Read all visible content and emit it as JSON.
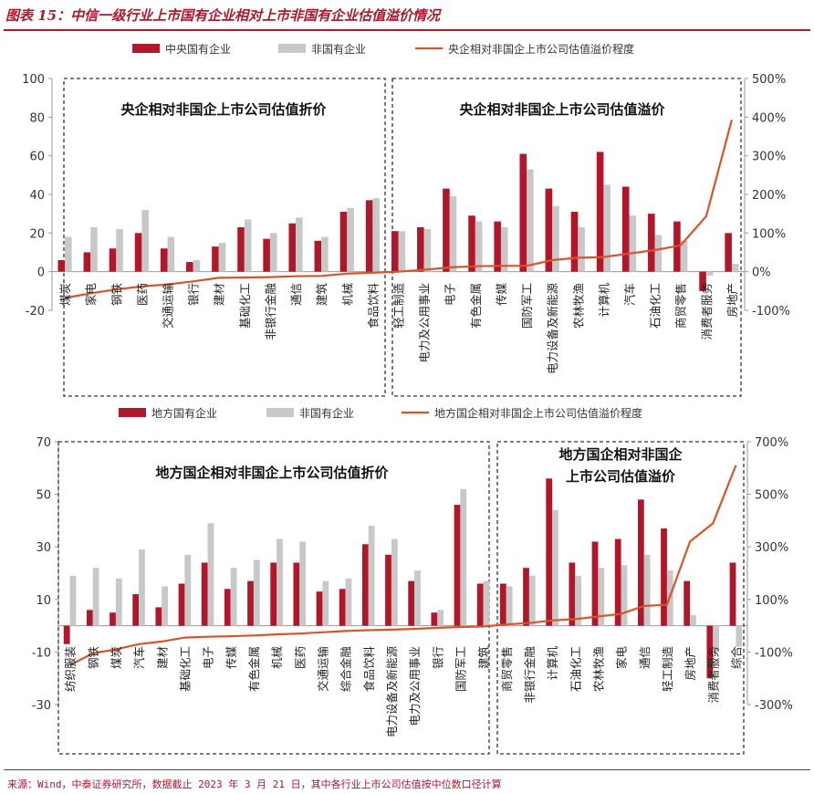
{
  "figure": {
    "title": "图表 15：中信一级行业上市国有企业相对上市非国有企业估值溢价情况",
    "source": "来源：Wind，中泰证券研究所，数据截止 2023 年 3 月 21 日，其中各行业上市公司估值按中位数口径计算"
  },
  "colors": {
    "soe": "#b0172b",
    "non_soe": "#c8c8c8",
    "line": "#d9532b",
    "box": "#333333"
  },
  "chart_data": [
    {
      "type": "bar",
      "legend": [
        "中央国有企业",
        "非国有企业",
        "央企相对非国企上市公司估值溢价程度"
      ],
      "boxes": [
        "央企相对非国企上市公司估值折价",
        "央企相对非国企上市公司估值溢价"
      ],
      "ylim_left": [
        -20,
        100
      ],
      "yticks_left": [
        "100",
        "80",
        "60",
        "40",
        "20",
        "0",
        "-20"
      ],
      "ylim_right": [
        -100,
        500
      ],
      "yticks_right": [
        "500%",
        "400%",
        "300%",
        "200%",
        "100%",
        "0%",
        "-100%"
      ],
      "categories": [
        "煤炭",
        "家电",
        "钢铁",
        "医药",
        "交通运输",
        "银行",
        "建材",
        "基础化工",
        "非银行金融",
        "通信",
        "建筑",
        "机械",
        "食品饮料",
        "轻工制造",
        "电力及公用事业",
        "电子",
        "有色金属",
        "传媒",
        "国防军工",
        "电力设备及新能源",
        "农林牧渔",
        "计算机",
        "汽车",
        "石油化工",
        "商贸零售",
        "消费者服务",
        "房地产"
      ],
      "series": [
        {
          "name": "中央国有企业",
          "values": [
            6,
            10,
            12,
            20,
            12,
            5,
            13,
            23,
            17,
            25,
            16,
            31,
            37,
            21,
            23,
            43,
            29,
            26,
            61,
            43,
            31,
            62,
            44,
            30,
            26,
            -10,
            20
          ]
        },
        {
          "name": "非国有企业",
          "values": [
            18,
            23,
            22,
            32,
            18,
            6,
            15,
            27,
            20,
            28,
            18,
            33,
            38,
            21,
            22,
            39,
            26,
            23,
            53,
            34,
            23,
            45,
            29,
            19,
            16,
            -2,
            4
          ]
        },
        {
          "name": "央企相对非国企上市公司估值溢价程度",
          "values": [
            -68,
            -56,
            -46,
            -38,
            -33,
            -25,
            -16,
            -15,
            -14,
            -12,
            -11,
            -5,
            -3,
            0,
            5,
            11,
            14,
            15,
            15,
            30,
            36,
            38,
            47,
            56,
            68,
            143,
            393
          ]
        }
      ]
    },
    {
      "type": "bar",
      "legend": [
        "地方国有企业",
        "非国有企业",
        "地方国企相对非国企上市公司估值溢价程度"
      ],
      "boxes": [
        "地方国企相对非国企上市公司估值折价",
        "地方国企相对非国企上市公司估值溢价"
      ],
      "box2_lines": [
        "地方国企相对非国企",
        "上市公司估值溢价"
      ],
      "ylim_left": [
        -30,
        70
      ],
      "yticks_left": [
        "70",
        "50",
        "30",
        "10",
        "-10",
        "-30"
      ],
      "ylim_right": [
        -300,
        700
      ],
      "yticks_right": [
        "700%",
        "500%",
        "300%",
        "100%",
        "-100%",
        "-300%"
      ],
      "categories": [
        "纺织服装",
        "钢铁",
        "煤炭",
        "汽车",
        "建材",
        "基础化工",
        "电子",
        "传媒",
        "有色金属",
        "机械",
        "医药",
        "交通运输",
        "综合金融",
        "食品饮料",
        "电力设备及新能源",
        "电力及公用事业",
        "银行",
        "国防军工",
        "建筑",
        "商贸零售",
        "非银行金融",
        "计算机",
        "石油化工",
        "农林牧渔",
        "家电",
        "通信",
        "轻工制造",
        "房地产",
        "消费者服务",
        "综合"
      ],
      "series": [
        {
          "name": "地方国有企业",
          "values": [
            -7,
            6,
            5,
            12,
            7,
            16,
            24,
            14,
            17,
            24,
            24,
            13,
            14,
            31,
            27,
            17,
            5,
            46,
            16,
            16,
            22,
            56,
            24,
            32,
            33,
            48,
            37,
            17,
            -20,
            24
          ]
        },
        {
          "name": "非国有企业",
          "values": [
            19,
            22,
            18,
            29,
            15,
            27,
            39,
            22,
            25,
            33,
            32,
            17,
            18,
            38,
            33,
            21,
            6,
            52,
            17,
            15,
            19,
            44,
            19,
            22,
            23,
            27,
            21,
            4,
            -10,
            -8
          ]
        },
        {
          "name": "地方国企相对非国企上市公司估值溢价程度",
          "values": [
            -150,
            -105,
            -90,
            -70,
            -60,
            -45,
            -42,
            -40,
            -37,
            -33,
            -30,
            -25,
            -20,
            -17,
            -15,
            -12,
            -8,
            -5,
            -3,
            5,
            10,
            20,
            25,
            35,
            45,
            75,
            80,
            320,
            390,
            610
          ]
        }
      ]
    }
  ]
}
